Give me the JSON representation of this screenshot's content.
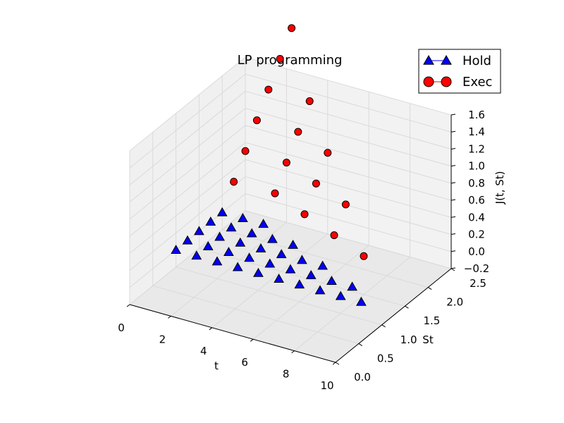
{
  "chart_data": {
    "type": "scatter3d",
    "title": "LP programming",
    "xlabel": "t",
    "ylabel": "St",
    "zlabel": "J(t, St)",
    "xlim": [
      0,
      10
    ],
    "ylim": [
      0,
      2.5
    ],
    "zlim": [
      -0.2,
      1.6
    ],
    "xticks": [
      "0",
      "2",
      "4",
      "6",
      "8",
      "10"
    ],
    "yticks": [
      "0.0",
      "0.5",
      "1.0",
      "1.5",
      "2.0",
      "2.5"
    ],
    "zticks": [
      "−0.2",
      "0.0",
      "0.2",
      "0.4",
      "0.6",
      "0.8",
      "1.0",
      "1.2",
      "1.4",
      "1.6"
    ],
    "grid": true,
    "legend": "top-right",
    "series": [
      {
        "name": "Hold",
        "marker": "triangle",
        "color": "#0000ff",
        "points": [
          [
            0,
            1.0,
            0
          ],
          [
            0,
            1.25,
            0
          ],
          [
            0,
            1.5,
            0
          ],
          [
            0,
            1.75,
            0
          ],
          [
            0,
            2.0,
            0
          ],
          [
            1,
            1.0,
            0
          ],
          [
            1,
            1.25,
            0
          ],
          [
            1,
            1.5,
            0
          ],
          [
            1,
            1.75,
            0
          ],
          [
            1,
            2.0,
            0
          ],
          [
            2,
            1.0,
            0
          ],
          [
            2,
            1.25,
            0
          ],
          [
            2,
            1.5,
            0
          ],
          [
            2,
            1.75,
            0
          ],
          [
            2,
            2.0,
            0
          ],
          [
            3,
            1.0,
            0
          ],
          [
            3,
            1.25,
            0
          ],
          [
            3,
            1.5,
            0
          ],
          [
            3,
            1.75,
            0
          ],
          [
            4,
            1.0,
            0
          ],
          [
            4,
            1.25,
            0
          ],
          [
            4,
            1.5,
            0
          ],
          [
            4,
            1.75,
            0
          ],
          [
            5,
            1.0,
            0
          ],
          [
            5,
            1.25,
            0
          ],
          [
            5,
            1.5,
            0
          ],
          [
            6,
            1.0,
            0
          ],
          [
            6,
            1.25,
            0
          ],
          [
            6,
            1.5,
            0
          ],
          [
            7,
            1.0,
            0
          ],
          [
            7,
            1.25,
            0
          ],
          [
            8,
            1.0,
            0
          ],
          [
            8,
            1.25,
            0
          ],
          [
            9,
            1.0,
            0
          ]
        ]
      },
      {
        "name": "Exec",
        "marker": "circle",
        "color": "#ff0000",
        "points": [
          [
            0,
            2.25,
            0.25
          ],
          [
            0,
            2.5,
            0.5
          ],
          [
            0,
            2.75,
            0.75
          ],
          [
            0,
            3.0,
            1.0
          ],
          [
            0,
            3.25,
            1.25
          ],
          [
            0,
            3.5,
            1.5
          ],
          [
            2,
            2.25,
            0.25
          ],
          [
            2,
            2.5,
            0.5
          ],
          [
            2,
            2.75,
            0.75
          ],
          [
            2,
            3.0,
            1.0
          ],
          [
            4,
            2.0,
            0.25
          ],
          [
            4,
            2.25,
            0.5
          ],
          [
            4,
            2.5,
            0.75
          ],
          [
            6,
            1.75,
            0.25
          ],
          [
            6,
            2.0,
            0.5
          ],
          [
            8,
            1.5,
            0.25
          ]
        ]
      }
    ]
  }
}
